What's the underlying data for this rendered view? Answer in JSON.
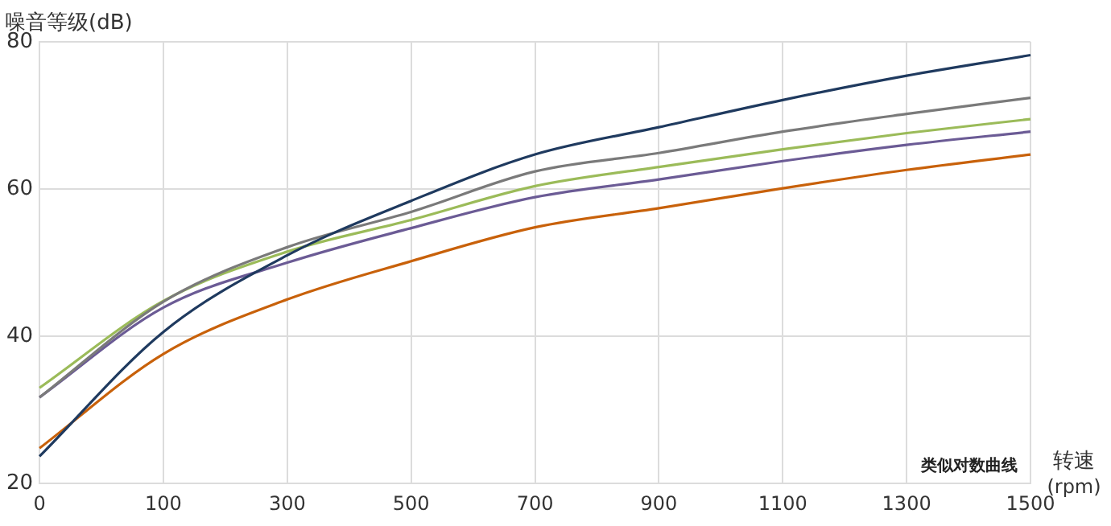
{
  "chart_data": {
    "type": "line",
    "ylabel": "噪音等级(dB)",
    "xlabel": "转速 (rpm)",
    "annotations": [
      "类似对数曲线"
    ],
    "categories": [
      "0",
      "100",
      "300",
      "500",
      "700",
      "900",
      "1100",
      "1300",
      "1500"
    ],
    "ylim": [
      20,
      80
    ],
    "yticks": [
      20,
      40,
      60,
      80
    ],
    "grid": true,
    "marker": "none",
    "series": [
      {
        "color": "#1f3a5f",
        "values": [
          23.7,
          40.6,
          51.0,
          58.4,
          64.7,
          68.4,
          72.1,
          75.4,
          78.2
        ]
      },
      {
        "color": "#7a7a7a",
        "values": [
          31.7,
          44.7,
          52.1,
          56.9,
          62.4,
          64.9,
          67.8,
          70.2,
          72.4
        ]
      },
      {
        "color": "#9bbb59",
        "values": [
          33.0,
          44.8,
          51.5,
          55.8,
          60.4,
          63.0,
          65.4,
          67.6,
          69.5
        ]
      },
      {
        "color": "#6b5b95",
        "values": [
          31.7,
          43.9,
          50.0,
          54.7,
          58.9,
          61.3,
          63.8,
          66.0,
          67.8
        ]
      },
      {
        "color": "#c8610a",
        "values": [
          24.8,
          37.6,
          45.0,
          50.2,
          54.8,
          57.4,
          60.1,
          62.6,
          64.7
        ]
      }
    ]
  }
}
